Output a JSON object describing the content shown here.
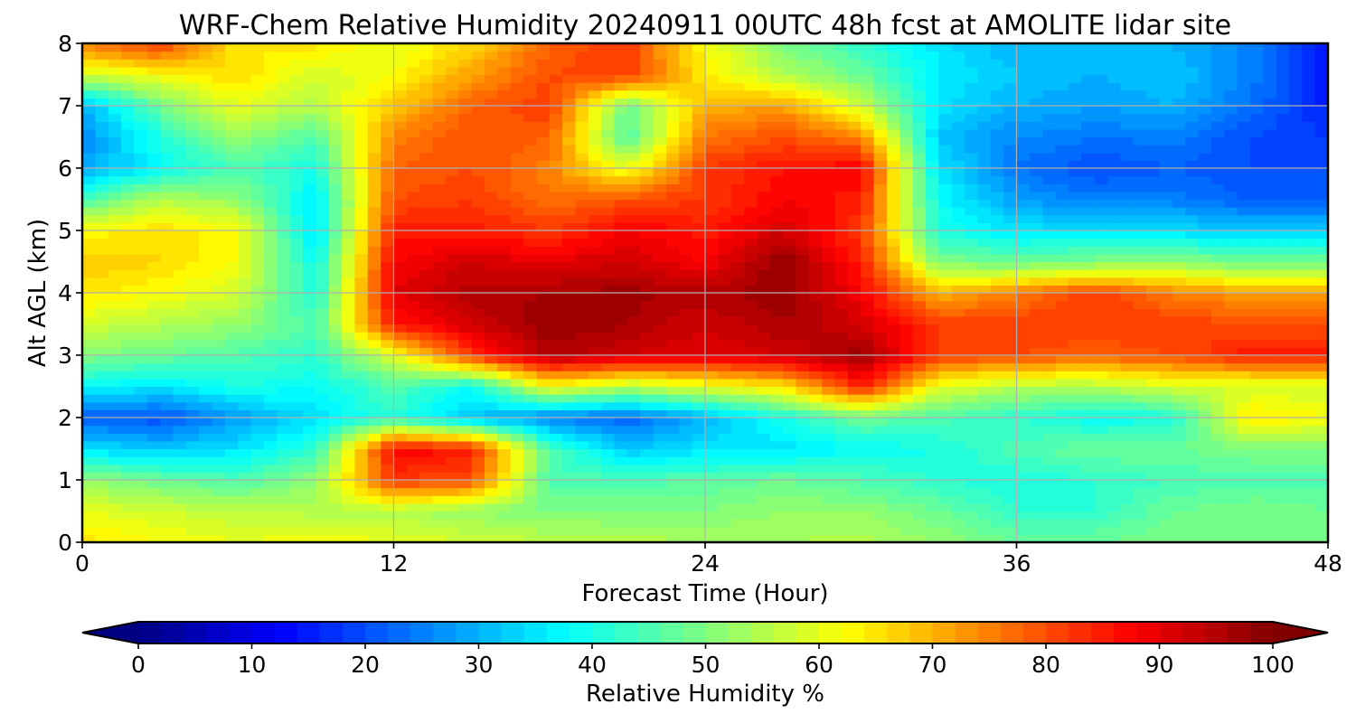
{
  "chart_data": {
    "type": "heatmap",
    "subtype": "filled-contour",
    "title": "WRF-Chem Relative Humidity 20240911 00UTC 48h fcst at AMOLITE lidar site",
    "xlabel": "Forecast Time (Hour)",
    "ylabel": "Alt AGL (km)",
    "xlim": [
      0,
      48
    ],
    "ylim": [
      0,
      8
    ],
    "x_ticks": [
      0,
      12,
      24,
      36,
      48
    ],
    "y_ticks": [
      0,
      1,
      2,
      3,
      4,
      5,
      6,
      7,
      8
    ],
    "grid": true,
    "colormap": "jet",
    "colorbar": {
      "label": "Relative Humidity %",
      "range": [
        0,
        100
      ],
      "ticks": [
        0,
        10,
        20,
        30,
        40,
        50,
        60,
        70,
        80,
        90,
        100
      ],
      "extend": "both",
      "placement": "bottom"
    },
    "x": [
      0,
      3,
      6,
      9,
      12,
      15,
      18,
      21,
      24,
      27,
      30,
      33,
      36,
      39,
      42,
      45,
      48
    ],
    "y": [
      0,
      0.5,
      1,
      1.5,
      2,
      2.5,
      3,
      3.5,
      4,
      4.5,
      5,
      5.5,
      6,
      6.5,
      7,
      7.5,
      8
    ],
    "values": [
      [
        65,
        62,
        60,
        62,
        60,
        58,
        56,
        55,
        54,
        54,
        55,
        52,
        48,
        48,
        50,
        50,
        50
      ],
      [
        60,
        58,
        56,
        55,
        55,
        52,
        50,
        50,
        50,
        52,
        52,
        48,
        42,
        42,
        48,
        50,
        48
      ],
      [
        52,
        48,
        45,
        52,
        82,
        80,
        45,
        45,
        46,
        48,
        45,
        42,
        40,
        42,
        44,
        45,
        45
      ],
      [
        35,
        32,
        35,
        42,
        88,
        85,
        45,
        32,
        35,
        35,
        38,
        40,
        45,
        48,
        48,
        50,
        50
      ],
      [
        22,
        20,
        28,
        35,
        42,
        32,
        25,
        22,
        30,
        40,
        48,
        45,
        42,
        38,
        40,
        65,
        62
      ],
      [
        38,
        35,
        40,
        38,
        45,
        38,
        62,
        55,
        60,
        65,
        85,
        60,
        55,
        55,
        58,
        58,
        58
      ],
      [
        50,
        48,
        45,
        42,
        60,
        82,
        95,
        92,
        90,
        92,
        97,
        82,
        80,
        78,
        80,
        85,
        85
      ],
      [
        58,
        55,
        52,
        45,
        85,
        92,
        98,
        96,
        92,
        96,
        92,
        82,
        82,
        82,
        82,
        80,
        80
      ],
      [
        65,
        62,
        58,
        40,
        90,
        95,
        96,
        97,
        95,
        98,
        88,
        70,
        75,
        82,
        75,
        72,
        72
      ],
      [
        68,
        66,
        62,
        38,
        88,
        92,
        90,
        92,
        88,
        98,
        85,
        50,
        48,
        50,
        52,
        48,
        48
      ],
      [
        62,
        66,
        62,
        34,
        85,
        85,
        82,
        88,
        85,
        92,
        82,
        40,
        35,
        35,
        34,
        32,
        32
      ],
      [
        45,
        55,
        52,
        35,
        80,
        82,
        76,
        80,
        82,
        88,
        85,
        38,
        28,
        25,
        25,
        22,
        22
      ],
      [
        28,
        38,
        45,
        40,
        78,
        80,
        75,
        60,
        82,
        86,
        88,
        35,
        24,
        20,
        22,
        20,
        20
      ],
      [
        26,
        40,
        52,
        45,
        75,
        80,
        78,
        45,
        76,
        80,
        75,
        32,
        26,
        24,
        25,
        20,
        18
      ],
      [
        30,
        48,
        60,
        55,
        68,
        78,
        82,
        48,
        70,
        72,
        58,
        35,
        30,
        28,
        30,
        24,
        15
      ],
      [
        58,
        62,
        66,
        58,
        62,
        72,
        80,
        82,
        64,
        55,
        48,
        36,
        32,
        30,
        32,
        25,
        15
      ],
      [
        75,
        82,
        64,
        65,
        60,
        66,
        78,
        82,
        62,
        50,
        42,
        35,
        30,
        30,
        30,
        25,
        15
      ]
    ]
  }
}
